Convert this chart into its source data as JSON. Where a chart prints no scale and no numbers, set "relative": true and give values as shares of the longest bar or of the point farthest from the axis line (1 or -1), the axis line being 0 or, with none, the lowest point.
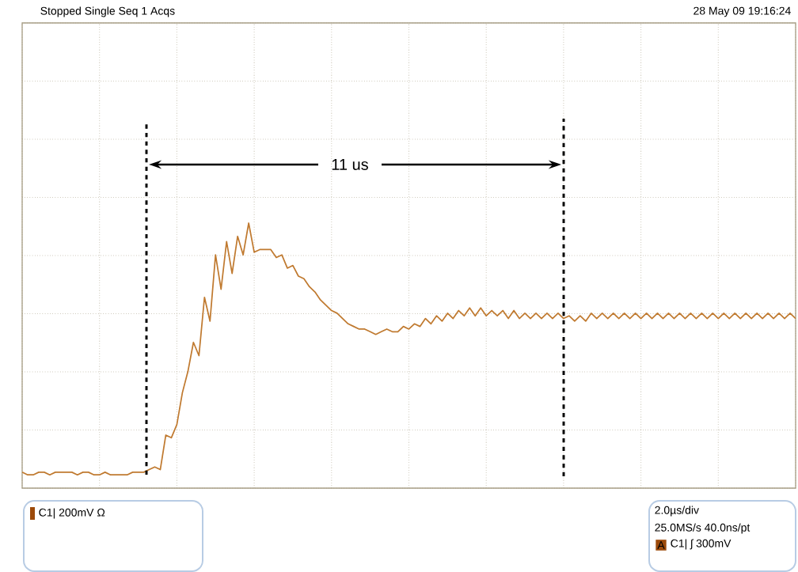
{
  "chart_data": {
    "type": "line",
    "relative": true,
    "color": "#c07a30",
    "line_style": "solid",
    "marker": "none",
    "grid": true,
    "categories": [
      null,
      null,
      null,
      null,
      null,
      null,
      null,
      null,
      null,
      null,
      null,
      null,
      null,
      null,
      null,
      null,
      null,
      null,
      null,
      null,
      null,
      null,
      null,
      null,
      null,
      null,
      null,
      null,
      null,
      null,
      null,
      null,
      null,
      null,
      null,
      null,
      null,
      null,
      null,
      null,
      null,
      null,
      null,
      null,
      null,
      null,
      null,
      null,
      null,
      null,
      null,
      null,
      null,
      null,
      null,
      null,
      null,
      null,
      null,
      null,
      null,
      null,
      null,
      null,
      null,
      null,
      null,
      null,
      null,
      null,
      null,
      null,
      null,
      null,
      null,
      null,
      null,
      null,
      null,
      null,
      null,
      null,
      null,
      null,
      null,
      null,
      null,
      null,
      null,
      null,
      null,
      null,
      null,
      null,
      null,
      null,
      null,
      null,
      null,
      null,
      null,
      null,
      null,
      null,
      null,
      null,
      null,
      null,
      null,
      null,
      null,
      null,
      null,
      null,
      null,
      null,
      null,
      null,
      null,
      null,
      null,
      null,
      null,
      null,
      null,
      null,
      null,
      null,
      null,
      null,
      null,
      null,
      null,
      null,
      null,
      null,
      null,
      null,
      null,
      null,
      null
    ],
    "values": [
      0.06,
      0.05,
      0.05,
      0.06,
      0.06,
      0.05,
      0.06,
      0.06,
      0.06,
      0.06,
      0.05,
      0.06,
      0.06,
      0.05,
      0.05,
      0.06,
      0.05,
      0.05,
      0.05,
      0.05,
      0.06,
      0.06,
      0.06,
      0.07,
      0.08,
      0.07,
      0.2,
      0.19,
      0.24,
      0.36,
      0.44,
      0.55,
      0.5,
      0.72,
      0.63,
      0.88,
      0.75,
      0.93,
      0.81,
      0.95,
      0.88,
      1.0,
      0.89,
      0.9,
      0.9,
      0.9,
      0.87,
      0.88,
      0.83,
      0.84,
      0.8,
      0.79,
      0.76,
      0.74,
      0.71,
      0.69,
      0.67,
      0.66,
      0.64,
      0.62,
      0.61,
      0.6,
      0.6,
      0.59,
      0.58,
      0.59,
      0.6,
      0.59,
      0.59,
      0.61,
      0.6,
      0.62,
      0.61,
      0.64,
      0.62,
      0.65,
      0.63,
      0.66,
      0.64,
      0.67,
      0.65,
      0.68,
      0.65,
      0.68,
      0.65,
      0.67,
      0.65,
      0.67,
      0.64,
      0.67,
      0.64,
      0.66,
      0.64,
      0.66,
      0.64,
      0.66,
      0.64,
      0.66,
      0.64,
      0.65,
      0.63,
      0.65,
      0.63,
      0.66,
      0.64,
      0.66,
      0.64,
      0.66,
      0.64,
      0.66,
      0.64,
      0.66,
      0.64,
      0.66,
      0.64,
      0.66,
      0.64,
      0.66,
      0.64,
      0.66,
      0.64,
      0.66,
      0.64,
      0.66,
      0.64,
      0.66,
      0.64,
      0.66,
      0.64,
      0.66,
      0.64,
      0.66,
      0.64,
      0.66,
      0.64,
      0.66,
      0.64,
      0.66,
      0.64,
      0.66,
      0.64
    ],
    "annotations": [
      "11 us",
      "Stopped Single Seq 1 Acqs",
      "28 May 09 19:16:24",
      "C1| 200mV Ω",
      "2.0µs/div",
      "25.0MS/s 40.0ns/pt",
      "A",
      "C1| ʃ 300mV"
    ]
  }
}
